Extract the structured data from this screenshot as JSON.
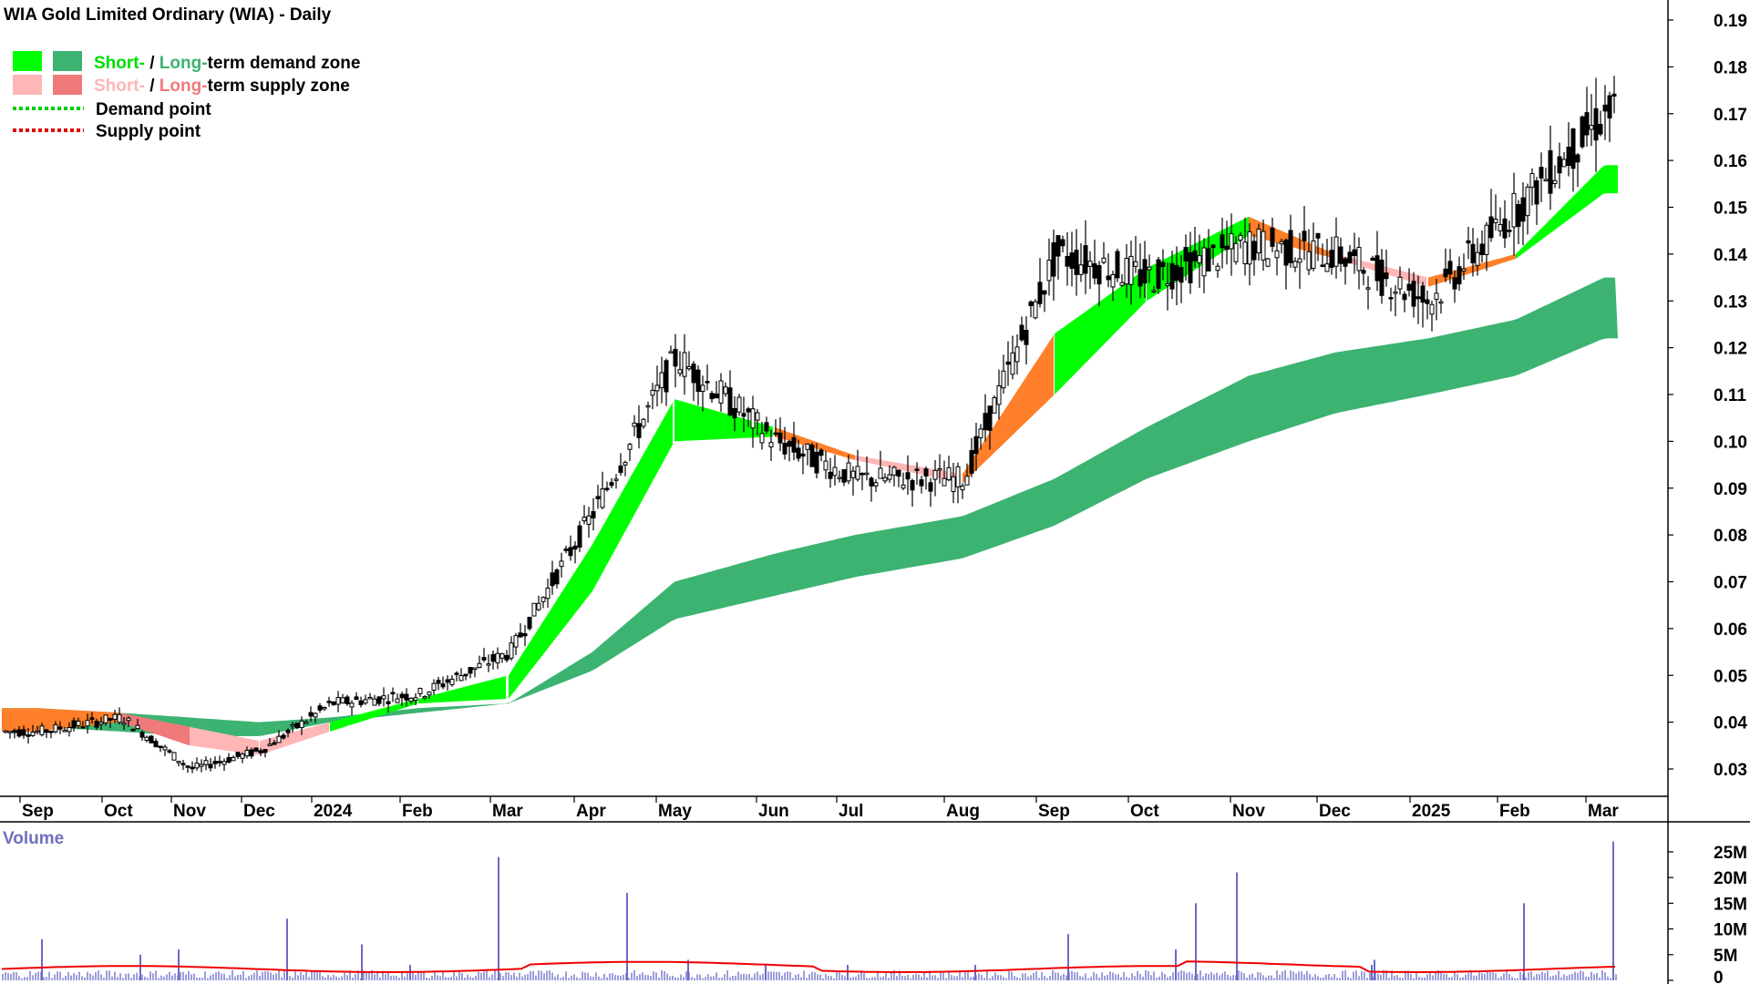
{
  "chart_data": {
    "type": "candlestick",
    "title": "WIA Gold Limited Ordinary (WIA) - Daily",
    "legend": {
      "placement": "top-left",
      "demand_zone": {
        "short": "Short-",
        "sep": " / ",
        "long": "Long-",
        "rest": "term demand zone"
      },
      "supply_zone": {
        "short": "Short-",
        "sep": " / ",
        "long": "Long-",
        "rest": "term supply zone"
      },
      "demand_point": "Demand point",
      "supply_point": "Supply point"
    },
    "colors": {
      "short_demand": "#00ff00",
      "long_demand": "#3cb371",
      "short_supply": "#ffb6b6",
      "long_supply": "#f07a7a",
      "transition": "#ff7f2a",
      "volume_bar": "#6a6ac8",
      "volume_avg": "#ee0000",
      "demand_point": "#00cc00",
      "supply_point": "#dd0000"
    },
    "price_axis": {
      "range": [
        0.02,
        0.19
      ],
      "ticks": [
        "0.19",
        "0.18",
        "0.17",
        "0.16",
        "0.15",
        "0.14",
        "0.13",
        "0.12",
        "0.11",
        "0.10",
        "0.09",
        "0.08",
        "0.07",
        "0.06",
        "0.05",
        "0.04",
        "0.03"
      ]
    },
    "time_axis": {
      "labels": [
        "Sep",
        "Oct",
        "Nov",
        "Dec",
        "2024",
        "Feb",
        "Mar",
        "Apr",
        "May",
        "Jun",
        "Jul",
        "Aug",
        "Sep",
        "Oct",
        "Nov",
        "Dec",
        "2025",
        "Feb",
        "Mar"
      ]
    },
    "price_series": {
      "name": "Close (approx.)",
      "points": [
        [
          "Sep",
          0.038
        ],
        [
          "Oct",
          0.041
        ],
        [
          "Nov",
          0.03
        ],
        [
          "Dec",
          0.034
        ],
        [
          "2024",
          0.044
        ],
        [
          "Feb",
          0.046
        ],
        [
          "Mar",
          0.055
        ],
        [
          "Apr",
          0.085
        ],
        [
          "May",
          0.118
        ],
        [
          "Jun",
          0.1
        ],
        [
          "Jul",
          0.092
        ],
        [
          "Aug",
          0.092
        ],
        [
          "Sep",
          0.14
        ],
        [
          "Oct",
          0.135
        ],
        [
          "Nov",
          0.142
        ],
        [
          "Dec",
          0.14
        ],
        [
          "2025",
          0.13
        ],
        [
          "Feb",
          0.15
        ],
        [
          "Mar",
          0.17
        ]
      ]
    },
    "short_term_zone": {
      "upper": [
        0.043,
        0.042,
        0.039,
        0.036,
        0.04,
        0.045,
        0.05,
        0.078,
        0.109,
        0.103,
        0.097,
        0.093,
        0.123,
        0.137,
        0.148,
        0.14,
        0.135,
        0.14,
        0.159
      ],
      "lower": [
        0.038,
        0.04,
        0.035,
        0.033,
        0.038,
        0.044,
        0.045,
        0.068,
        0.1,
        0.101,
        0.096,
        0.091,
        0.11,
        0.13,
        0.144,
        0.139,
        0.133,
        0.139,
        0.153
      ]
    },
    "long_term_zone": {
      "upper": [
        0.043,
        0.042,
        0.041,
        0.04,
        0.041,
        0.043,
        0.044,
        0.055,
        0.07,
        0.076,
        0.08,
        0.084,
        0.092,
        0.103,
        0.114,
        0.119,
        0.122,
        0.126,
        0.135
      ],
      "lower": [
        0.039,
        0.038,
        0.037,
        0.037,
        0.04,
        0.042,
        0.044,
        0.051,
        0.062,
        0.067,
        0.071,
        0.075,
        0.082,
        0.092,
        0.1,
        0.106,
        0.11,
        0.114,
        0.122
      ]
    },
    "volume_panel": {
      "label": "Volume",
      "range": [
        0,
        28
      ],
      "unit": "M",
      "ticks": [
        "25M",
        "20M",
        "15M",
        "10M",
        "5M",
        "0"
      ],
      "average_level": 2.2,
      "spikes": [
        [
          "Sep",
          8
        ],
        [
          "Oct",
          5
        ],
        [
          "Nov",
          6
        ],
        [
          "Dec",
          12
        ],
        [
          "2024",
          7
        ],
        [
          "Feb",
          3
        ],
        [
          "Mar",
          24
        ],
        [
          "Apr",
          17
        ],
        [
          "May",
          4
        ],
        [
          "Jun",
          3
        ],
        [
          "Jul",
          3
        ],
        [
          "Aug",
          3
        ],
        [
          "Sep",
          9
        ],
        [
          "Oct",
          6
        ],
        [
          "Oct",
          15
        ],
        [
          "Nov",
          21
        ],
        [
          "Dec",
          3
        ],
        [
          "2025",
          4
        ],
        [
          "Feb",
          15
        ],
        [
          "Mar",
          27
        ]
      ]
    }
  }
}
